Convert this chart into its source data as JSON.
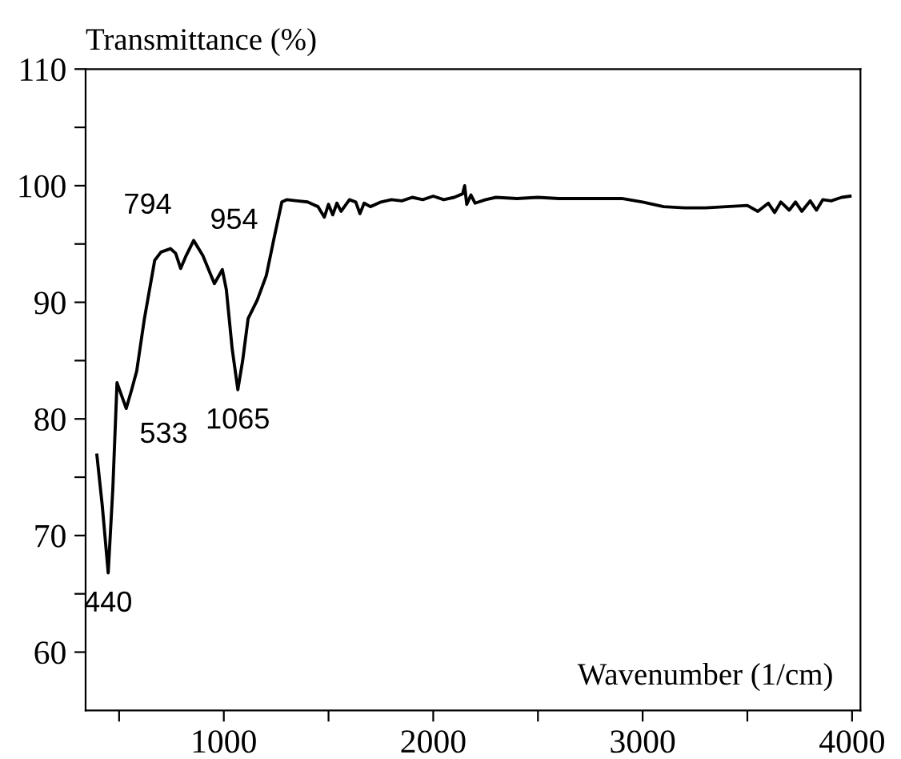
{
  "chart_data": {
    "type": "line",
    "xlabel": "Wavenumber (1/cm)",
    "ylabel": "Transmittance (%)",
    "x": [
      394,
      420,
      448,
      470,
      490,
      512,
      534,
      560,
      584,
      620,
      670,
      700,
      745,
      770,
      794,
      820,
      856,
      900,
      955,
      993,
      1012,
      1040,
      1067,
      1090,
      1116,
      1160,
      1203,
      1240,
      1277,
      1300,
      1350,
      1400,
      1450,
      1480,
      1500,
      1520,
      1540,
      1560,
      1580,
      1600,
      1630,
      1650,
      1670,
      1700,
      1750,
      1800,
      1850,
      1900,
      1950,
      2000,
      2050,
      2100,
      2140,
      2150,
      2160,
      2180,
      2200,
      2250,
      2300,
      2400,
      2500,
      2600,
      2700,
      2800,
      2900,
      3000,
      3100,
      3200,
      3300,
      3400,
      3500,
      3550,
      3600,
      3630,
      3660,
      3700,
      3730,
      3760,
      3800,
      3830,
      3860,
      3900,
      3950,
      3990
    ],
    "series": [
      {
        "color": "#000000",
        "values": [
          76.9,
          72.5,
          66.8,
          74,
          83.1,
          82,
          80.9,
          82.5,
          84.1,
          88.5,
          93.6,
          94.3,
          94.6,
          94.2,
          92.9,
          94,
          95.3,
          94,
          91.6,
          92.8,
          91.1,
          86,
          82.5,
          85,
          88.6,
          90.2,
          92.3,
          95.5,
          98.6,
          98.8,
          98.7,
          98.6,
          98.2,
          97.3,
          98.4,
          97.5,
          98.5,
          97.8,
          98.3,
          98.8,
          98.6,
          97.6,
          98.5,
          98.2,
          98.6,
          98.8,
          98.7,
          99,
          98.8,
          99.1,
          98.8,
          99,
          99.3,
          100,
          98.4,
          99.2,
          98.5,
          98.8,
          99,
          98.9,
          99,
          98.9,
          98.9,
          98.9,
          98.9,
          98.6,
          98.2,
          98.1,
          98.1,
          98.2,
          98.3,
          97.8,
          98.5,
          97.7,
          98.6,
          97.9,
          98.6,
          97.8,
          98.7,
          97.9,
          98.8,
          98.7,
          99,
          99.1
        ]
      }
    ],
    "xlim": [
      340,
      4040
    ],
    "ylim": [
      55,
      110
    ],
    "xticks": [
      {
        "value": 500,
        "label": null
      },
      1000,
      {
        "value": 1500,
        "label": null
      },
      2000,
      {
        "value": 2500,
        "label": null
      },
      3000,
      {
        "value": 3500,
        "label": null
      },
      4000
    ],
    "yticks": [
      60,
      {
        "value": 65,
        "label": null
      },
      70,
      {
        "value": 75,
        "label": null
      },
      80,
      {
        "value": 85,
        "label": null
      },
      90,
      {
        "value": 95,
        "label": null
      },
      100,
      {
        "value": 105,
        "label": null
      },
      110
    ],
    "annotations": [
      {
        "text": "440",
        "x": 448,
        "y": 66.8
      },
      {
        "text": "533",
        "x": 534,
        "y": 80.9
      },
      {
        "text": "794",
        "x": 794,
        "y": 92.9
      },
      {
        "text": "954",
        "x": 955,
        "y": 91.6
      },
      {
        "text": "1065",
        "x": 1067,
        "y": 82.5
      }
    ],
    "grid": false,
    "legend": false,
    "marker": "none",
    "line_style": "solid"
  }
}
